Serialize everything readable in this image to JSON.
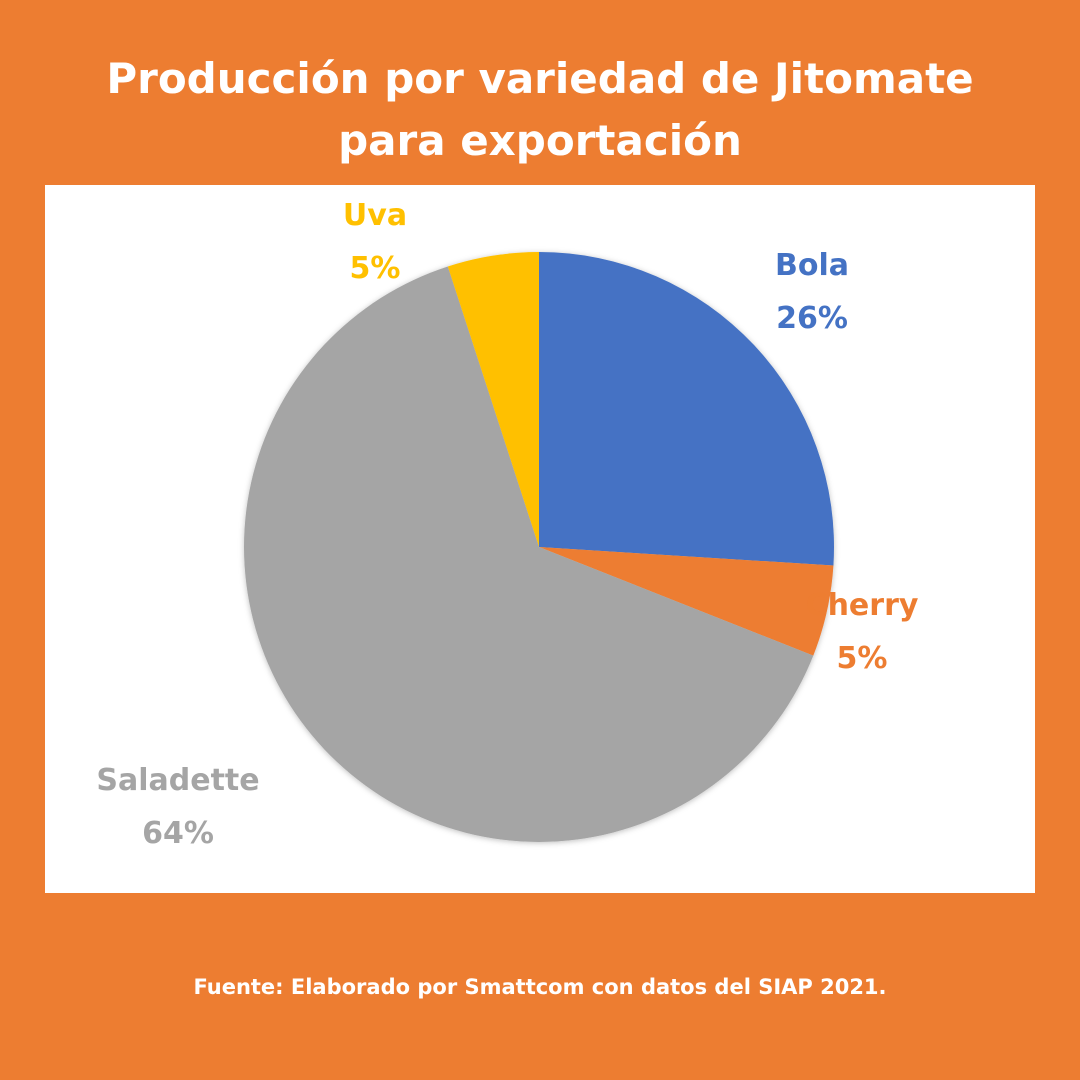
{
  "title_line1": "Producción por variedad de Jitomate",
  "title_line2": "para exportación",
  "footer": "Fuente: Elaborado por Smattcom con datos del SIAP 2021.",
  "background_color": "#ED7D31",
  "chart_data": {
    "type": "pie",
    "title": "Producción por variedad de Jitomate para exportación",
    "start_angle": "12 o'clock, clockwise",
    "categories": [
      "Bola",
      "Cherry",
      "Saladette",
      "Uva"
    ],
    "values": [
      26,
      5,
      64,
      5
    ],
    "labels": [
      "26%",
      "5%",
      "64%",
      "5%"
    ],
    "colors": [
      "#4472C4",
      "#ED7D31",
      "#A5A5A5",
      "#FFC000"
    ],
    "label_colors": [
      "#4472C4",
      "#ED7D31",
      "#A5A5A5",
      "#FFC000"
    ],
    "legend": "none (data labels outside slices)"
  }
}
